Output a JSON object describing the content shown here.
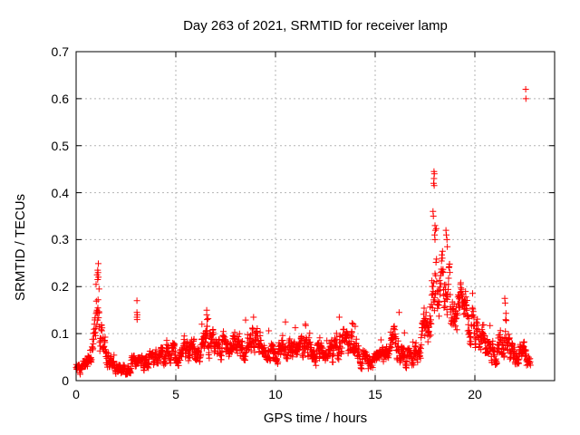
{
  "chart_data": {
    "type": "scatter",
    "title": "Day 263 of 2021, SRMTID for receiver lamp",
    "xlabel": "GPS time / hours",
    "ylabel": "SRMTID / TECUs",
    "xlim": [
      0,
      24
    ],
    "ylim": [
      0,
      0.7
    ],
    "xticks": [
      0,
      5,
      10,
      15,
      20
    ],
    "yticks": [
      0,
      0.1,
      0.2,
      0.3,
      0.4,
      0.5,
      0.6,
      0.7
    ],
    "grid": true,
    "legend": "none",
    "series": [
      {
        "name": "SRMTID",
        "marker": "plus",
        "color": "#ff0000",
        "x_start": 0.0,
        "x_end": 22.8,
        "envelope_columns": [
          "hour",
          "low",
          "high"
        ],
        "envelope": [
          [
            0.0,
            0.01,
            0.045
          ],
          [
            0.5,
            0.015,
            0.05
          ],
          [
            0.8,
            0.03,
            0.1
          ],
          [
            1.0,
            0.06,
            0.2
          ],
          [
            1.1,
            0.07,
            0.235
          ],
          [
            1.25,
            0.05,
            0.16
          ],
          [
            1.5,
            0.03,
            0.09
          ],
          [
            1.8,
            0.015,
            0.05
          ],
          [
            2.3,
            0.01,
            0.045
          ],
          [
            2.8,
            0.015,
            0.05
          ],
          [
            3.2,
            0.02,
            0.06
          ],
          [
            3.6,
            0.02,
            0.065
          ],
          [
            4.0,
            0.025,
            0.07
          ],
          [
            4.4,
            0.03,
            0.1
          ],
          [
            4.8,
            0.03,
            0.09
          ],
          [
            5.2,
            0.03,
            0.08
          ],
          [
            5.6,
            0.04,
            0.1
          ],
          [
            6.0,
            0.03,
            0.085
          ],
          [
            6.5,
            0.05,
            0.13
          ],
          [
            6.8,
            0.04,
            0.11
          ],
          [
            7.2,
            0.04,
            0.1
          ],
          [
            7.6,
            0.045,
            0.105
          ],
          [
            8.0,
            0.05,
            0.12
          ],
          [
            8.5,
            0.04,
            0.11
          ],
          [
            9.0,
            0.05,
            0.12
          ],
          [
            9.5,
            0.045,
            0.1
          ],
          [
            10.0,
            0.03,
            0.09
          ],
          [
            10.5,
            0.045,
            0.11
          ],
          [
            11.0,
            0.04,
            0.1
          ],
          [
            11.5,
            0.05,
            0.11
          ],
          [
            12.0,
            0.03,
            0.085
          ],
          [
            12.5,
            0.02,
            0.07
          ],
          [
            13.0,
            0.035,
            0.1
          ],
          [
            13.4,
            0.04,
            0.11
          ],
          [
            13.9,
            0.04,
            0.105
          ],
          [
            14.4,
            0.02,
            0.07
          ],
          [
            14.8,
            0.015,
            0.06
          ],
          [
            15.2,
            0.025,
            0.075
          ],
          [
            15.6,
            0.03,
            0.08
          ],
          [
            16.0,
            0.04,
            0.12
          ],
          [
            16.3,
            0.035,
            0.1
          ],
          [
            16.7,
            0.02,
            0.065
          ],
          [
            17.0,
            0.03,
            0.09
          ],
          [
            17.4,
            0.05,
            0.13
          ],
          [
            17.7,
            0.08,
            0.2
          ],
          [
            18.0,
            0.12,
            0.3
          ],
          [
            18.3,
            0.13,
            0.27
          ],
          [
            18.6,
            0.13,
            0.26
          ],
          [
            18.9,
            0.11,
            0.24
          ],
          [
            19.2,
            0.1,
            0.22
          ],
          [
            19.5,
            0.08,
            0.2
          ],
          [
            19.8,
            0.07,
            0.18
          ],
          [
            20.1,
            0.06,
            0.16
          ],
          [
            20.4,
            0.04,
            0.13
          ],
          [
            20.7,
            0.035,
            0.12
          ],
          [
            21.0,
            0.03,
            0.1
          ],
          [
            21.3,
            0.04,
            0.13
          ],
          [
            21.55,
            0.05,
            0.15
          ],
          [
            21.8,
            0.03,
            0.09
          ],
          [
            22.1,
            0.025,
            0.08
          ],
          [
            22.4,
            0.03,
            0.09
          ],
          [
            22.8,
            0.025,
            0.06
          ]
        ],
        "notable_points": [
          [
            1.05,
            0.225
          ],
          [
            1.08,
            0.235
          ],
          [
            1.1,
            0.23
          ],
          [
            1.12,
            0.22
          ],
          [
            1.08,
            0.215
          ],
          [
            1.0,
            0.205
          ],
          [
            1.15,
            0.195
          ],
          [
            3.05,
            0.17
          ],
          [
            3.05,
            0.145
          ],
          [
            3.07,
            0.14
          ],
          [
            3.05,
            0.135
          ],
          [
            3.06,
            0.13
          ],
          [
            6.55,
            0.15
          ],
          [
            6.55,
            0.14
          ],
          [
            6.57,
            0.13
          ],
          [
            8.9,
            0.135
          ],
          [
            10.5,
            0.125
          ],
          [
            11.5,
            0.12
          ],
          [
            13.2,
            0.135
          ],
          [
            13.9,
            0.12
          ],
          [
            16.2,
            0.145
          ],
          [
            17.93,
            0.42
          ],
          [
            17.95,
            0.445
          ],
          [
            17.95,
            0.43
          ],
          [
            17.96,
            0.415
          ],
          [
            17.97,
            0.44
          ],
          [
            17.9,
            0.36
          ],
          [
            17.92,
            0.35
          ],
          [
            18.0,
            0.33
          ],
          [
            18.02,
            0.32
          ],
          [
            17.98,
            0.31
          ],
          [
            18.0,
            0.3
          ],
          [
            18.55,
            0.32
          ],
          [
            18.57,
            0.31
          ],
          [
            18.6,
            0.3
          ],
          [
            18.62,
            0.285
          ],
          [
            21.5,
            0.175
          ],
          [
            21.52,
            0.165
          ],
          [
            22.55,
            0.62
          ],
          [
            22.56,
            0.6
          ]
        ]
      }
    ]
  },
  "colors": {
    "marker": "#ff0000",
    "grid": "#b4b4b4",
    "axis": "#000000",
    "text": "#000000",
    "background": "#ffffff"
  }
}
